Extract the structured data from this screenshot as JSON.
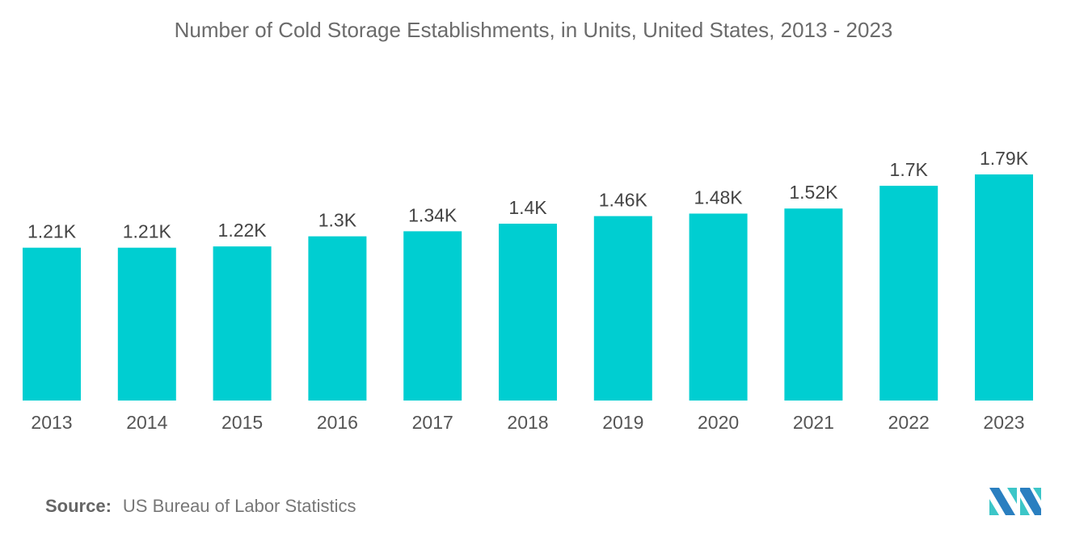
{
  "chart_data": {
    "type": "bar",
    "title": "Number of Cold Storage Establishments, in Units, United States, 2013 - 2023",
    "categories": [
      "2013",
      "2014",
      "2015",
      "2016",
      "2017",
      "2018",
      "2019",
      "2020",
      "2021",
      "2022",
      "2023"
    ],
    "values": [
      1210,
      1210,
      1220,
      1300,
      1340,
      1400,
      1460,
      1480,
      1520,
      1700,
      1790
    ],
    "data_labels": [
      "1.21K",
      "1.21K",
      "1.22K",
      "1.3K",
      "1.34K",
      "1.4K",
      "1.46K",
      "1.48K",
      "1.52K",
      "1.7K",
      "1.79K"
    ],
    "xlabel": "",
    "ylabel": "",
    "ylim": [
      0,
      1790
    ],
    "grid": false,
    "legend": "none",
    "bar_color": "#00ced1"
  },
  "source": {
    "label": "Source:",
    "text": "US Bureau of Labor Statistics"
  }
}
